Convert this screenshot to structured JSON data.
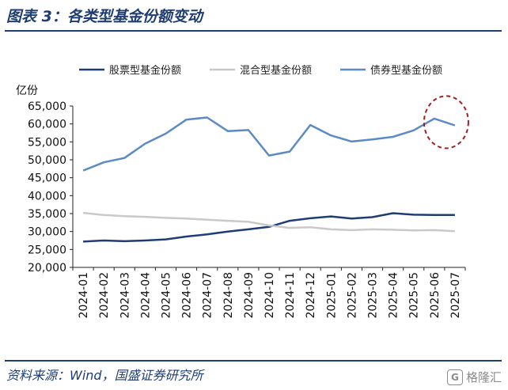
{
  "header": {
    "title": "图表 3：各类型基金份额变动"
  },
  "footer": {
    "source": "资料来源：Wind，国盛证券研究所"
  },
  "watermark": {
    "logo_letter": "G",
    "text": "格隆汇",
    "logo_icon": "gelonghui-logo-icon"
  },
  "colors": {
    "stock": "#1f3d73",
    "mixed": "#c9c9c9",
    "bond": "#5b8ac4",
    "highlight": "#a11f24"
  },
  "chart_data": {
    "type": "line",
    "title": "",
    "ylabel": "亿份",
    "ylim": [
      20000,
      65000
    ],
    "yticks": [
      20000,
      25000,
      30000,
      35000,
      40000,
      45000,
      50000,
      55000,
      60000,
      65000
    ],
    "ytick_labels": [
      "20,000",
      "25,000",
      "30,000",
      "35,000",
      "40,000",
      "45,000",
      "50,000",
      "55,000",
      "60,000",
      "65,000"
    ],
    "grid": false,
    "legend": "top",
    "categories": [
      "2024-01",
      "2024-02",
      "2024-03",
      "2024-04",
      "2024-05",
      "2024-06",
      "2024-07",
      "2024-08",
      "2024-09",
      "2024-10",
      "2024-11",
      "2024-12",
      "2025-01",
      "2025-02",
      "2025-03",
      "2025-04",
      "2025-05",
      "2025-06",
      "2025-07"
    ],
    "series": [
      {
        "name": "股票型基金份额",
        "color": "#1f3d73",
        "values": [
          27200,
          27500,
          27300,
          27500,
          27800,
          28600,
          29200,
          30000,
          30600,
          31300,
          33000,
          33700,
          34200,
          33600,
          34000,
          35100,
          34700,
          34600,
          34600
        ]
      },
      {
        "name": "混合型基金份额",
        "color": "#c9c9c9",
        "values": [
          35200,
          34600,
          34300,
          34100,
          33800,
          33600,
          33300,
          33000,
          32700,
          31700,
          31000,
          31200,
          30600,
          30400,
          30600,
          30500,
          30300,
          30400,
          30100
        ]
      },
      {
        "name": "债券型基金份额",
        "color": "#5b8ac4",
        "values": [
          47000,
          49300,
          50500,
          54500,
          57300,
          61200,
          61800,
          58000,
          58300,
          51200,
          52300,
          59700,
          56800,
          55100,
          55700,
          56400,
          58200,
          61500,
          59600
        ]
      }
    ],
    "annotation": {
      "type": "dashed-ellipse",
      "around": [
        "2025-06",
        "2025-07"
      ]
    }
  }
}
